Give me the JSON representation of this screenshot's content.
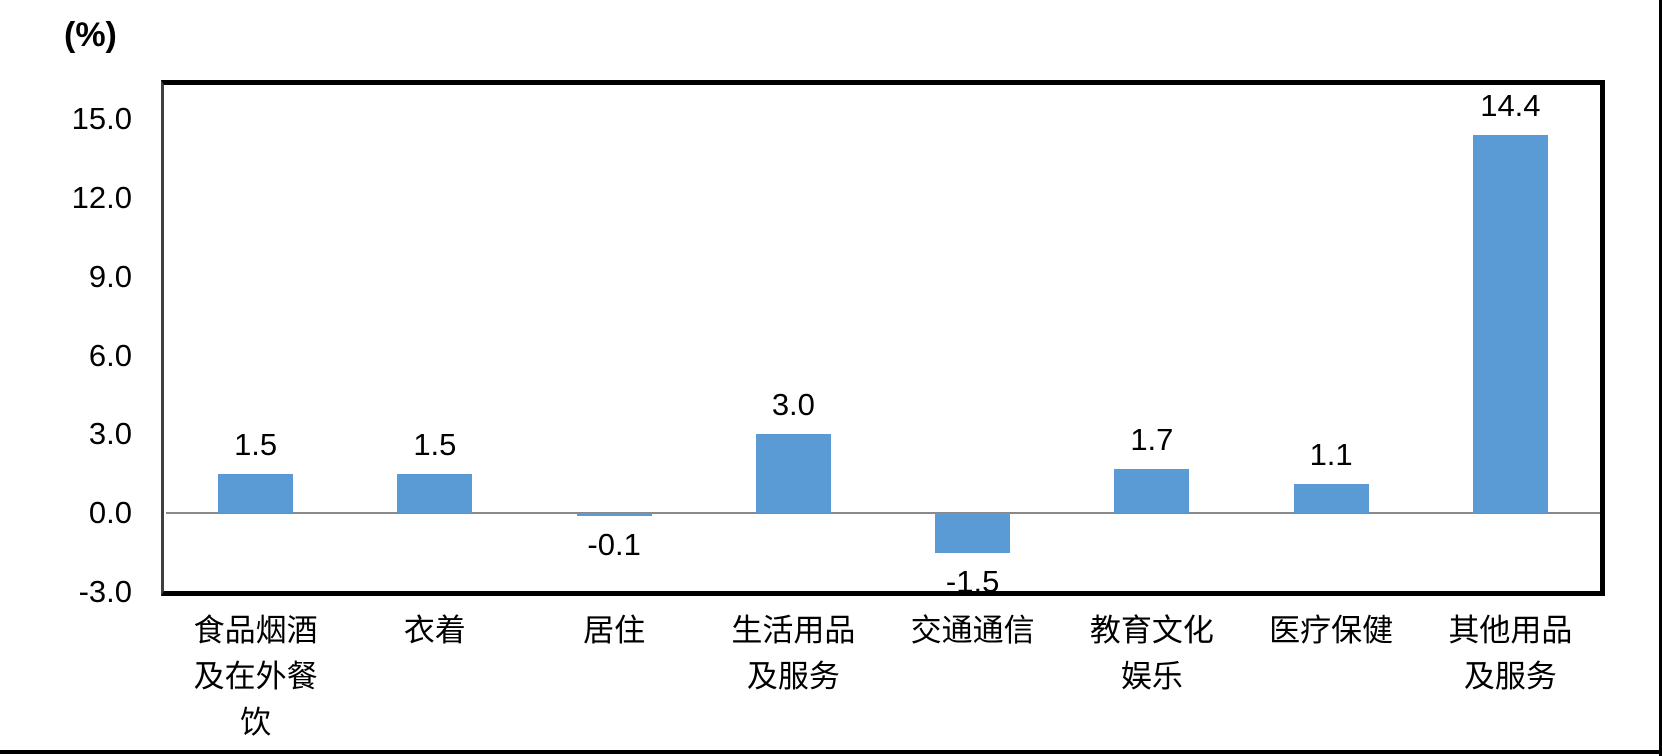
{
  "chart_data": {
    "type": "bar",
    "title": "",
    "unit_label": "(%)",
    "xlabel": "",
    "ylabel": "(%)",
    "categories": [
      "食品烟酒\n及在外餐\n饮",
      "衣着",
      "居住",
      "生活用品\n及服务",
      "交通通信",
      "教育文化\n娱乐",
      "医疗保健",
      "其他用品\n及服务"
    ],
    "values": [
      1.5,
      1.5,
      -0.1,
      3.0,
      -1.5,
      1.7,
      1.1,
      14.4
    ],
    "data_labels": [
      "1.5",
      "1.5",
      "-0.1",
      "3.0",
      "-1.5",
      "1.7",
      "1.1",
      "14.4"
    ],
    "ytick_values": [
      15.0,
      12.0,
      9.0,
      6.0,
      3.0,
      0.0,
      -3.0
    ],
    "ytick_labels": [
      "15.0",
      "12.0",
      "9.0",
      "6.0",
      "3.0",
      "0.0",
      "-3.0"
    ],
    "ylim": [
      -3.0,
      16.3
    ],
    "grid": false,
    "legend": false,
    "bar_color": "#5B9BD5",
    "zero_line_color": "#898989",
    "plot_border_color": "#000000",
    "text_color": "#000000"
  }
}
